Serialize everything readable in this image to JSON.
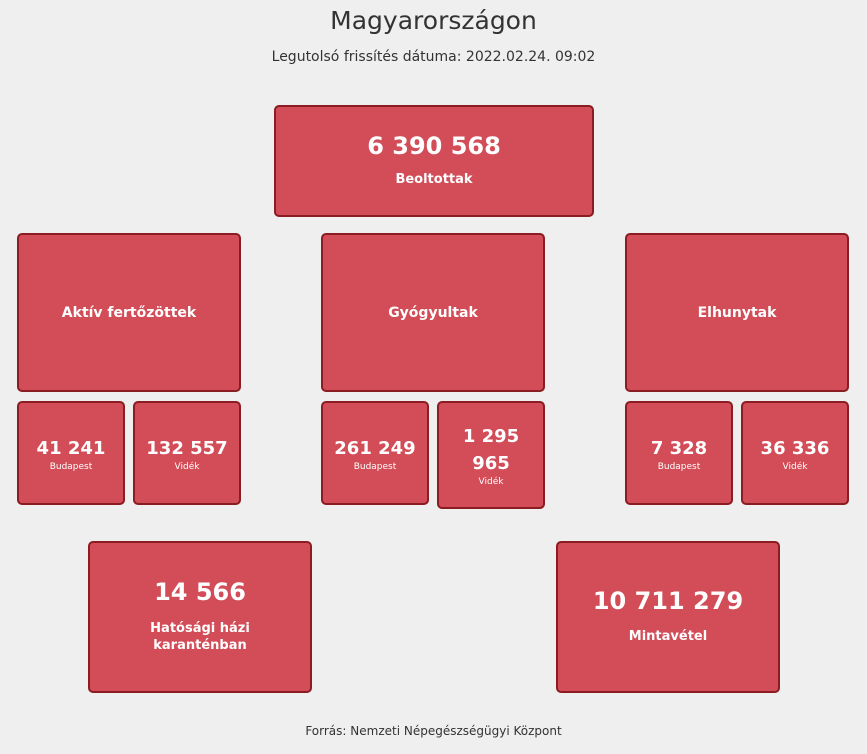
{
  "header": {
    "title": "Magyarországon",
    "updated": "Legutolsó frissítés dátuma: 2022.02.24. 09:02"
  },
  "vaccinated": {
    "value": "6 390 568",
    "label": "Beoltottak"
  },
  "categories": [
    {
      "label": "Aktív fertőzöttek",
      "budapest": {
        "value": "41 241",
        "label": "Budapest"
      },
      "videk": {
        "value": "132 557",
        "label": "Vidék"
      }
    },
    {
      "label": "Gyógyultak",
      "budapest": {
        "value": "261 249",
        "label": "Budapest"
      },
      "videk": {
        "value": "1 295 965",
        "label": "Vidék"
      }
    },
    {
      "label": "Elhunytak",
      "budapest": {
        "value": "7 328",
        "label": "Budapest"
      },
      "videk": {
        "value": "36 336",
        "label": "Vidék"
      }
    }
  ],
  "quarantine": {
    "value": "14 566",
    "label": "Hatósági házi karanténban"
  },
  "sampling": {
    "value": "10 711 279",
    "label": "Mintavétel"
  },
  "footer": {
    "source": "Forrás: Nemzeti Népegészségügyi Központ"
  },
  "colors": {
    "box_fill": "#d24d57",
    "box_border": "#8a1c22",
    "background": "#efefef"
  }
}
